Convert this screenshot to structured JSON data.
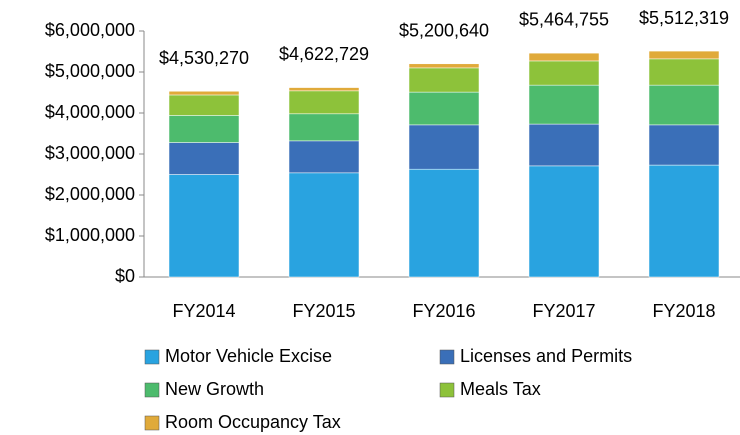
{
  "chart_data": {
    "type": "stacked_bar",
    "categories": [
      "FY2014",
      "FY2015",
      "FY2016",
      "FY2017",
      "FY2018"
    ],
    "series": [
      {
        "name": "Motor Vehicle Excise",
        "color": "#29a3e0",
        "values": [
          2500000,
          2540000,
          2630000,
          2710000,
          2730000
        ]
      },
      {
        "name": "Licenses and Permits",
        "color": "#3a6fb8",
        "values": [
          780000,
          780000,
          1080000,
          1020000,
          980000
        ]
      },
      {
        "name": "New Growth",
        "color": "#4dbb6d",
        "values": [
          660000,
          660000,
          800000,
          950000,
          970000
        ]
      },
      {
        "name": "Meals Tax",
        "color": "#8dc23a",
        "values": [
          500000,
          560000,
          590000,
          590000,
          640000
        ]
      },
      {
        "name": "Room Occupancy Tax",
        "color": "#e0aa3a",
        "values": [
          90000,
          80000,
          100000,
          190000,
          190000
        ]
      }
    ],
    "totals": [
      4530270,
      4622729,
      5200640,
      5464755,
      5512319
    ],
    "totals_labels": [
      "$4,530,270",
      "$4,622,729",
      "$5,200,640",
      "$5,464,755",
      "$5,512,319"
    ],
    "ylim": [
      0,
      6000000
    ],
    "yticks": [
      {
        "value": 0,
        "label": "$0"
      },
      {
        "value": 1000000,
        "label": "$1,000,000"
      },
      {
        "value": 2000000,
        "label": "$2,000,000"
      },
      {
        "value": 3000000,
        "label": "$3,000,000"
      },
      {
        "value": 4000000,
        "label": "$4,000,000"
      },
      {
        "value": 5000000,
        "label": "$5,000,000"
      },
      {
        "value": 6000000,
        "label": "$6,000,000"
      }
    ]
  }
}
